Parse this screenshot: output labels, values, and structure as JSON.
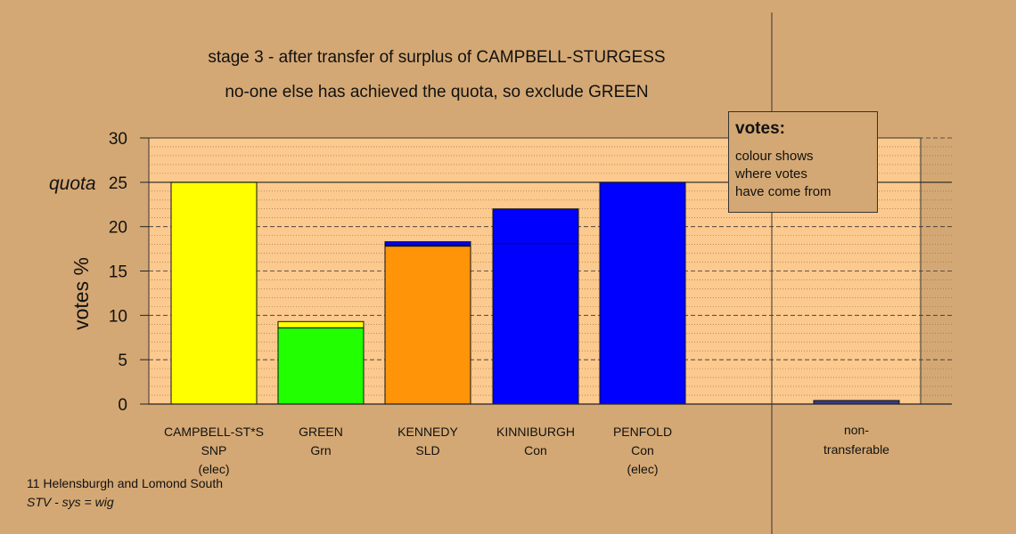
{
  "title_lines": [
    "stage 3 - after transfer of surplus of CAMPBELL-STURGESS",
    "no-one else has achieved the quota, so exclude GREEN"
  ],
  "legend": {
    "title": "votes:",
    "lines": [
      "colour shows",
      "where votes",
      "have come from"
    ]
  },
  "footer": {
    "ward": "11 Helensburgh and Lomond South",
    "system": "STV - sys = wig"
  },
  "colors": {
    "background": "#d4a874",
    "plot_area": "#fcc98e",
    "SNP": "#ffff00",
    "Grn": "#22ff00",
    "SLD": "#ff9408",
    "Con": "#0000ff",
    "nontransferable": "#3a3a8a"
  },
  "chart_data": {
    "type": "bar",
    "stacked": true,
    "ylabel": "votes %",
    "ylim": [
      0,
      30
    ],
    "yticks": [
      0,
      5,
      10,
      15,
      20,
      25,
      30
    ],
    "quota": {
      "value": 25,
      "label": "quota"
    },
    "grid": true,
    "candidates": [
      {
        "label_lines": [
          "CAMPBELL-ST*S",
          "SNP",
          "(elec)"
        ],
        "segments": [
          {
            "party": "SNP",
            "value": 25.0
          }
        ]
      },
      {
        "label_lines": [
          "GREEN",
          "Grn"
        ],
        "segments": [
          {
            "party": "Grn",
            "value": 8.6
          },
          {
            "party": "SNP",
            "value": 0.7
          }
        ]
      },
      {
        "label_lines": [
          "KENNEDY",
          "SLD"
        ],
        "segments": [
          {
            "party": "SLD",
            "value": 17.8
          },
          {
            "party": "SNP",
            "value": 0.1
          },
          {
            "party": "Con",
            "value": 0.4
          }
        ]
      },
      {
        "label_lines": [
          "KINNIBURGH",
          "Con"
        ],
        "segments": [
          {
            "party": "Con",
            "value": 18.1
          },
          {
            "party": "Con",
            "value": 3.9
          }
        ]
      },
      {
        "label_lines": [
          "PENFOLD",
          "Con",
          "(elec)"
        ],
        "segments": [
          {
            "party": "Con",
            "value": 25.0
          }
        ]
      }
    ],
    "nontransferable": {
      "label_lines": [
        "non-",
        "transferable"
      ],
      "value": 0.4
    }
  }
}
